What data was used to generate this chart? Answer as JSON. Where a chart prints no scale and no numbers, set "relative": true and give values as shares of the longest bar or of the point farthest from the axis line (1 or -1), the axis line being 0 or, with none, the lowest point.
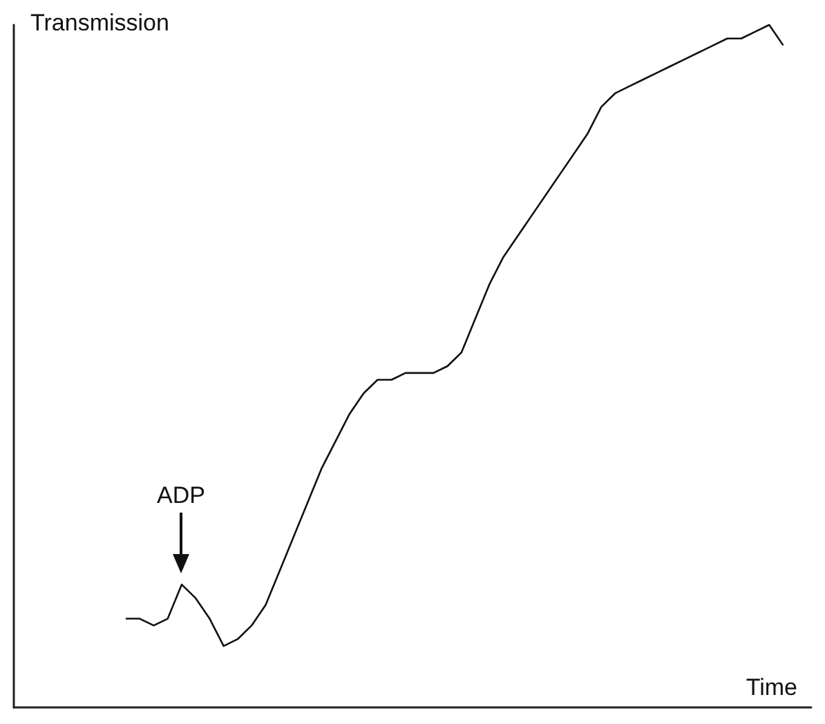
{
  "chart_data": {
    "type": "line",
    "relative": true,
    "xlabel": "Time",
    "ylabel": "Transmission",
    "annotations": [
      "ADP"
    ],
    "categories": [
      null,
      null,
      null,
      null,
      null,
      null,
      null,
      null,
      null,
      null,
      null,
      null,
      null,
      null,
      null,
      null,
      null,
      null,
      null,
      null,
      null,
      null,
      null,
      null,
      null,
      null,
      null,
      null,
      null,
      null,
      null,
      null,
      null,
      null,
      null,
      null,
      null,
      null,
      null,
      null,
      null,
      null,
      null,
      null,
      null,
      null,
      null,
      null,
      null,
      null,
      null,
      null,
      null,
      null,
      null,
      null,
      null,
      null
    ],
    "series": [
      {
        "color": "#111111",
        "values": [
          null,
          null,
          null,
          null,
          null,
          null,
          null,
          null,
          0.13,
          0.13,
          0.12,
          0.13,
          0.18,
          0.16,
          0.13,
          0.09,
          0.1,
          0.12,
          0.15,
          0.2,
          0.25,
          0.3,
          0.35,
          0.39,
          0.43,
          0.46,
          0.48,
          0.48,
          0.49,
          0.49,
          0.49,
          0.5,
          0.52,
          0.57,
          0.62,
          0.66,
          0.69,
          0.72,
          0.75,
          0.78,
          0.81,
          0.84,
          0.88,
          0.9,
          0.91,
          0.92,
          0.93,
          0.94,
          0.95,
          0.96,
          0.97,
          0.98,
          0.98,
          0.99,
          1.0,
          0.97,
          null,
          null
        ]
      }
    ],
    "marker": "none",
    "line_style": "solid",
    "grid": false
  }
}
